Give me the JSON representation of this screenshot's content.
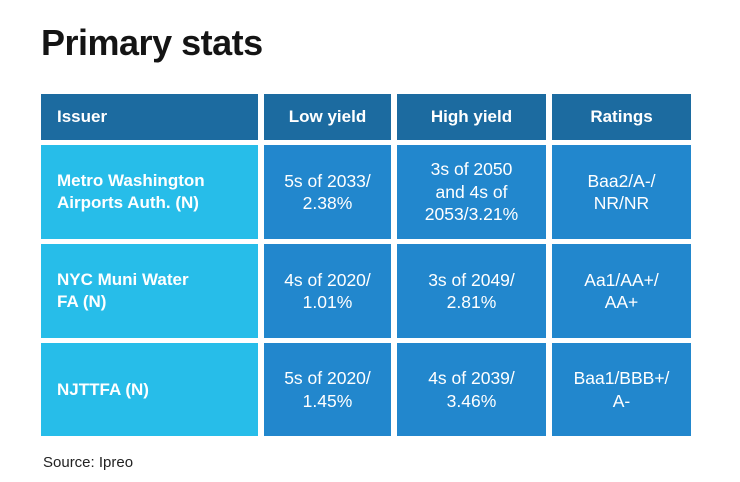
{
  "page": {
    "title": "Primary stats",
    "source": "Source: Ipreo"
  },
  "colors": {
    "header_bg": "#1c6ba0",
    "issuer_cell_bg": "#27bde9",
    "data_cell_bg": "#2287cd",
    "cell_text": "#ffffff",
    "title_text": "#141414",
    "source_text": "#222222",
    "page_bg": "#ffffff"
  },
  "table": {
    "columns": {
      "issuer": "Issuer",
      "low_yield": "Low yield",
      "high_yield": "High yield",
      "ratings": "Ratings"
    },
    "rows": [
      {
        "issuer": "Metro Washington\nAirports Auth. (N)",
        "low_yield": "5s of 2033/\n2.38%",
        "high_yield": "3s of 2050\nand 4s of\n2053/3.21%",
        "ratings": "Baa2/A-/\nNR/NR"
      },
      {
        "issuer": "NYC Muni Water\nFA (N)",
        "low_yield": "4s of 2020/\n1.01%",
        "high_yield": "3s of 2049/\n2.81%",
        "ratings": "Aa1/AA+/\nAA+"
      },
      {
        "issuer": "NJTTFA (N)",
        "low_yield": "5s of 2020/\n1.45%",
        "high_yield": "4s of 2039/\n3.46%",
        "ratings": "Baa1/BBB+/\nA-"
      }
    ]
  },
  "chart_data": {
    "type": "table",
    "title": "Primary stats",
    "source": "Source: Ipreo",
    "columns": [
      "Issuer",
      "Low yield",
      "High yield",
      "Ratings"
    ],
    "rows": [
      [
        "Metro Washington Airports Auth. (N)",
        "5s of 2033/2.38%",
        "3s of 2050 and 4s of 2053/3.21%",
        "Baa2/A-/NR/NR"
      ],
      [
        "NYC Muni Water FA (N)",
        "4s of 2020/1.01%",
        "3s of 2049/2.81%",
        "Aa1/AA+/AA+"
      ],
      [
        "NJTTFA (N)",
        "5s of 2020/1.45%",
        "4s of 2039/3.46%",
        "Baa1/BBB+/A-"
      ]
    ]
  }
}
